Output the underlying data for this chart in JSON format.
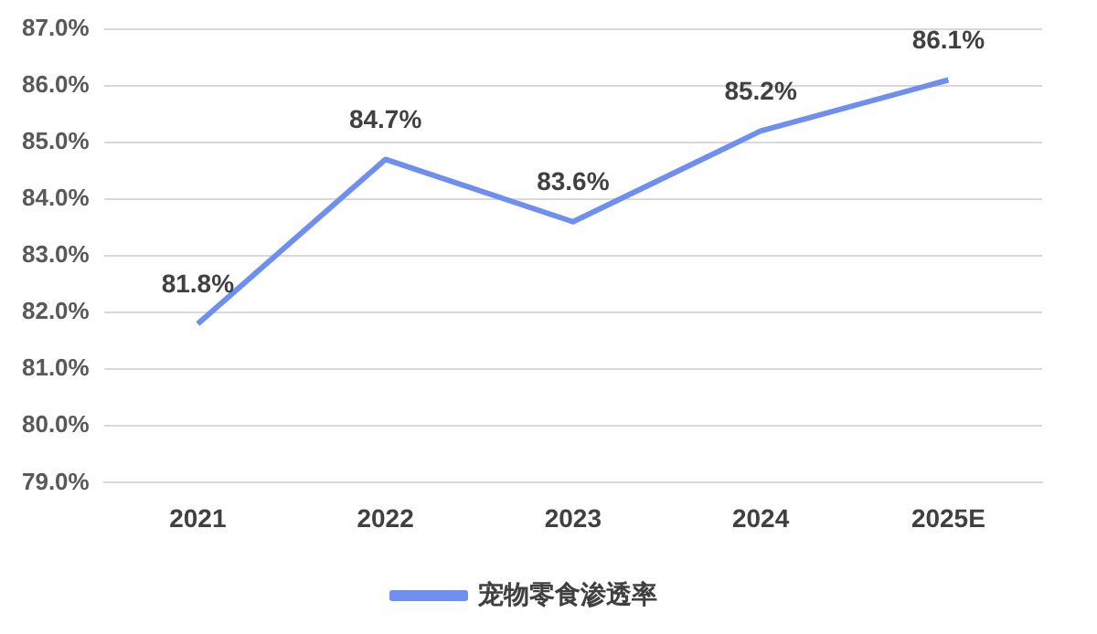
{
  "chart_data": {
    "type": "line",
    "categories": [
      "2021",
      "2022",
      "2023",
      "2024",
      "2025E"
    ],
    "series": [
      {
        "name": "宠物零食渗透率",
        "color": "#6f8ff0",
        "values": [
          81.8,
          84.7,
          83.6,
          85.2,
          86.1
        ],
        "value_labels": [
          "81.8%",
          "84.7%",
          "83.6%",
          "85.2%",
          "86.1%"
        ]
      }
    ],
    "ylim": [
      79,
      87
    ],
    "yticks": [
      {
        "value": 79,
        "label": "79.0%"
      },
      {
        "value": 80,
        "label": "80.0%"
      },
      {
        "value": 81,
        "label": "81.0%"
      },
      {
        "value": 82,
        "label": "82.0%"
      },
      {
        "value": 83,
        "label": "83.0%"
      },
      {
        "value": 84,
        "label": "84.0%"
      },
      {
        "value": 85,
        "label": "85.0%"
      },
      {
        "value": 86,
        "label": "86.0%"
      },
      {
        "value": 87,
        "label": "87.0%"
      }
    ],
    "grid": "y",
    "legend": "bottom",
    "marker": "none",
    "line_style": "solid"
  }
}
